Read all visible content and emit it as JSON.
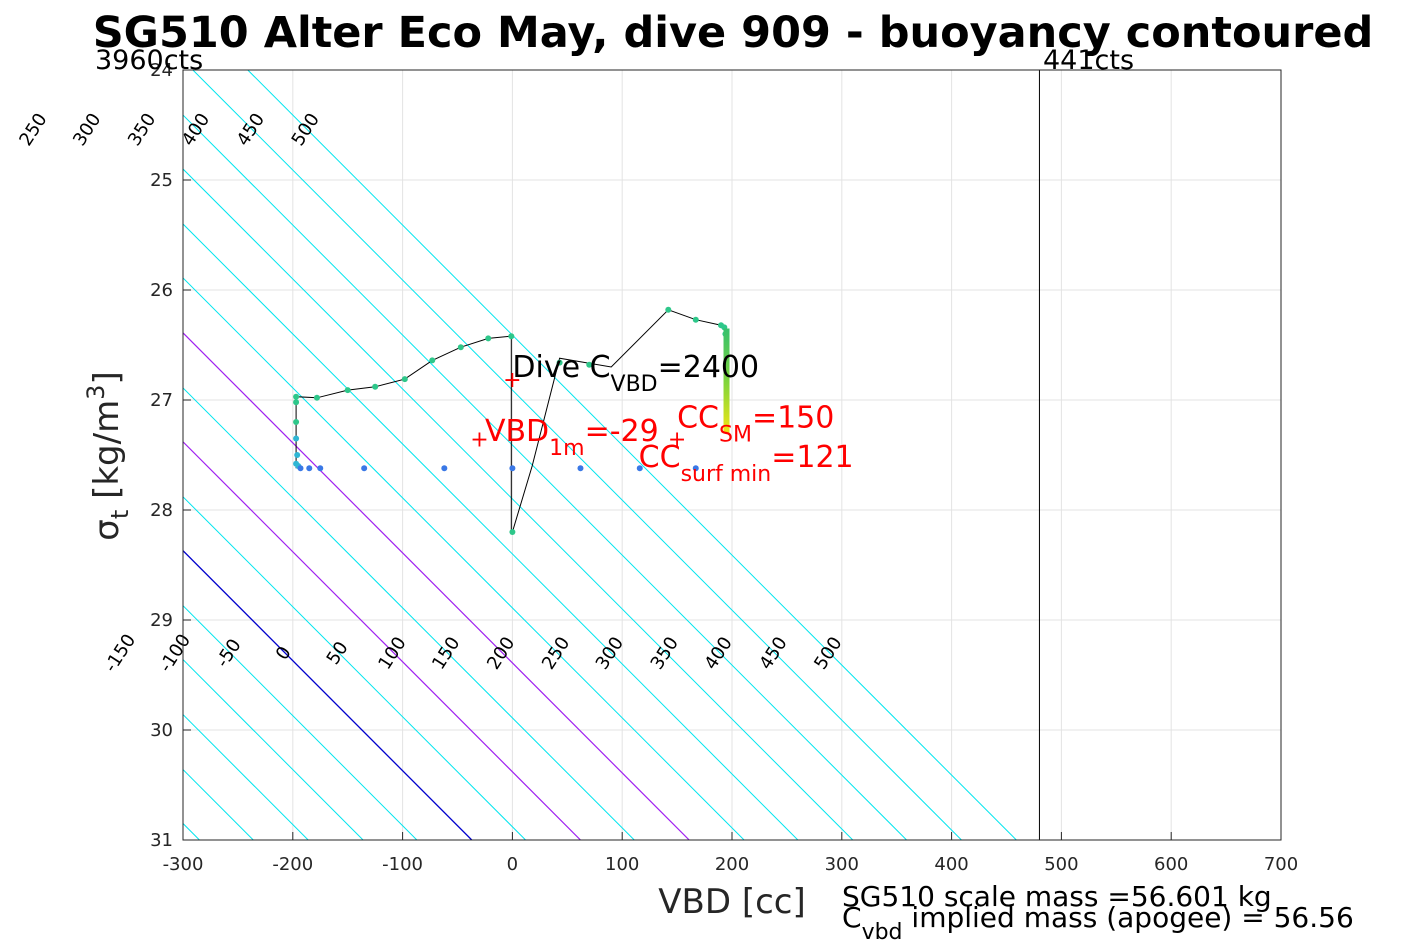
{
  "chart_data": {
    "type": "line",
    "title": "SG510 Alter Eco May, dive 909 - buoyancy contoured",
    "xlabel": "VBD [cc]",
    "ylabel": {
      "sym": "σ",
      "sub": "t",
      "unit": " [kg/m",
      "sup": "3",
      "close": "]"
    },
    "xlim": [
      -300,
      700
    ],
    "ylim": [
      24,
      31
    ],
    "y_reversed": true,
    "x_ticks": [
      -300,
      -200,
      -100,
      0,
      100,
      200,
      300,
      400,
      500,
      600,
      700
    ],
    "y_ticks": [
      24,
      25,
      26,
      27,
      28,
      29,
      30,
      31
    ],
    "x_tick_labels": [
      "-300",
      "-200",
      "-100",
      "0",
      "100",
      "200",
      "300",
      "400",
      "500",
      "600",
      "700"
    ],
    "y_tick_labels": [
      "24",
      "25",
      "26",
      "27",
      "28",
      "29",
      "30",
      "31"
    ],
    "grid": true,
    "counts_labels": {
      "left": "3960cts",
      "right": "441cts"
    },
    "counts_line_x": 480,
    "contours": {
      "levels": [
        -450,
        -400,
        -350,
        -300,
        -250,
        -200,
        -150,
        -100,
        -50,
        0,
        50,
        100,
        150,
        200,
        250,
        300,
        350,
        400,
        450,
        500
      ],
      "zero_level": 0,
      "highlight_levels": [
        100,
        200
      ],
      "colors": {
        "normal": "#00e5ee",
        "zero": "#0000cc",
        "highlight": "#a020f0"
      },
      "anchor_x_at_sigma_31": [
        -485,
        -435,
        -385,
        -335,
        -285,
        -236,
        -186,
        -136,
        -87,
        -37,
        12,
        62,
        111,
        161,
        211,
        260,
        310,
        359,
        409,
        459
      ],
      "slope_cc_per_sigma": 100,
      "top_labels": [
        "-400",
        "-350",
        "-300",
        "-250",
        "-200",
        "-150",
        "-100",
        "-50",
        "0",
        "50",
        "100",
        "150",
        "200",
        "250",
        "300",
        "350",
        "400",
        "450",
        "500"
      ],
      "bottom_labels": [
        "-150",
        "-100",
        "-50",
        "0",
        "50",
        "100",
        "150",
        "200",
        "250",
        "300",
        "350",
        "400",
        "450",
        "500"
      ]
    },
    "series": [
      {
        "style": "trace",
        "color": "#000000",
        "x": [
          -197,
          -197,
          -197,
          -197,
          -197,
          -197,
          -178,
          -150,
          -125,
          -98,
          -73,
          -47,
          -22,
          -1,
          -1,
          -1,
          0,
          18,
          43,
          90,
          142,
          167,
          190,
          193,
          194,
          195,
          195,
          195
        ],
        "y": [
          27.62,
          27.5,
          27.35,
          27.2,
          27.02,
          26.97,
          26.98,
          26.91,
          26.88,
          26.81,
          26.64,
          26.52,
          26.44,
          26.42,
          27.6,
          28.2,
          28.2,
          27.6,
          26.62,
          26.7,
          26.18,
          26.27,
          26.32,
          26.34,
          26.4,
          26.6,
          27.0,
          27.3
        ]
      },
      {
        "style": "points",
        "color": "#2ec78a",
        "x": [
          -197,
          -197,
          -197,
          -178,
          -150,
          -125,
          -98,
          -73,
          -47,
          -22,
          -1,
          0,
          43,
          70,
          142,
          167,
          190,
          193,
          194
        ],
        "y": [
          27.02,
          26.97,
          27.2,
          26.98,
          26.91,
          26.88,
          26.81,
          26.64,
          26.52,
          26.44,
          26.42,
          28.2,
          26.66,
          26.68,
          26.18,
          26.27,
          26.32,
          26.34,
          26.4
        ]
      },
      {
        "style": "points",
        "color": "#2fb6d4",
        "x": [
          -197,
          -196,
          -197,
          -195
        ],
        "y": [
          27.35,
          27.5,
          27.58,
          27.6
        ]
      },
      {
        "style": "points",
        "color": "#3a78e6",
        "x": [
          -193,
          -185,
          -175,
          -135,
          -62,
          0,
          62,
          116,
          167
        ],
        "y": [
          27.62,
          27.62,
          27.62,
          27.62,
          27.62,
          27.62,
          27.62,
          27.62,
          27.62
        ]
      },
      {
        "style": "bar",
        "x": 195,
        "y_from": 26.35,
        "y_to": 27.3,
        "colors": [
          "#36c06c",
          "#7ed43c",
          "#f2e614"
        ]
      }
    ],
    "markers": [
      {
        "symbol": "+",
        "x": 0,
        "y": 26.82
      },
      {
        "symbol": "+",
        "x": -30,
        "y": 27.36
      },
      {
        "symbol": "+",
        "x": 150,
        "y": 27.36
      }
    ],
    "annotations": [
      {
        "text": "Dive C",
        "sub": "VBD",
        "rest": "=2400",
        "color": "#000000",
        "x": 0,
        "y": 26.8
      },
      {
        "text": "VBD",
        "sub": "1m",
        "rest": "=-29",
        "color": "#ff0000",
        "x": -25,
        "y": 27.38
      },
      {
        "text": "CC",
        "sub": "SM",
        "rest": "=150",
        "color": "#ff0000",
        "x": 150,
        "y": 27.26
      },
      {
        "text": "CC",
        "sub": "surf min",
        "rest": "=121",
        "color": "#ff0000",
        "x": 115,
        "y": 27.62
      }
    ],
    "footer": {
      "line1": "SG510 scale mass =56.601 kg",
      "line2_main": "C",
      "line2_sub": "vbd",
      "line2_rest": " implied mass (apogee) = 56.56"
    }
  }
}
